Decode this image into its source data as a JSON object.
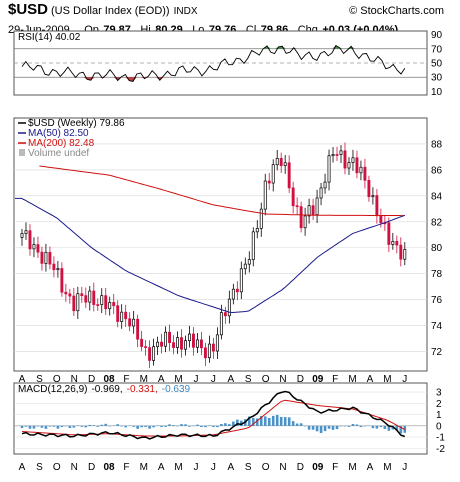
{
  "header": {
    "symbol": "$USD",
    "name": "(US Dollar Index (EOD))",
    "exchange": "INDX",
    "brand": "© StockCharts.com",
    "date": "29-Jun-2009",
    "op_label": "Op",
    "op": "79.87",
    "hi_label": "Hi",
    "hi": "80.29",
    "lo_label": "Lo",
    "lo": "79.76",
    "cl_label": "Cl",
    "cl": "79.86",
    "chg_label": "Chg",
    "chg": "+0.03 (+0.04%)"
  },
  "rsi_panel": {
    "legend": "RSI(14) 40.02",
    "axis": [
      "90",
      "70",
      "50",
      "30",
      "10"
    ]
  },
  "price_panel": {
    "legend": [
      {
        "label": "$USD (Weekly) 79.86",
        "color": "#000000"
      },
      {
        "label": "MA(50) 82.50",
        "color": "#1a1a8c"
      },
      {
        "label": "MA(200) 82.48",
        "color": "#d01010"
      },
      {
        "label": "Volume undef",
        "color": "#888888"
      }
    ],
    "axis": [
      "88",
      "86",
      "84",
      "82",
      "80",
      "78",
      "76",
      "74",
      "72"
    ]
  },
  "macd_panel": {
    "legend_label": "MACD(12,26,9)",
    "legend_values": [
      {
        "text": "-0.969,",
        "color": "#000000"
      },
      {
        "text": "-0.331,",
        "color": "#d01010"
      },
      {
        "text": "-0.639",
        "color": "#3a86c0"
      }
    ],
    "axis": [
      "3",
      "2",
      "1",
      "0",
      "-1",
      "-2"
    ]
  },
  "x_axis": [
    "A",
    "S",
    "O",
    "N",
    "D",
    "08",
    "F",
    "M",
    "A",
    "M",
    "J",
    "J",
    "A",
    "S",
    "O",
    "N",
    "D",
    "09",
    "F",
    "M",
    "A",
    "M",
    "J"
  ],
  "chart_data": {
    "type": "line",
    "title": "$USD (US Dollar Index (EOD)) INDX",
    "frequency": "weekly",
    "x_axis_labels": [
      "A",
      "S",
      "O",
      "N",
      "D",
      "08",
      "F",
      "M",
      "A",
      "M",
      "J",
      "J",
      "A",
      "S",
      "O",
      "N",
      "D",
      "09",
      "F",
      "M",
      "A",
      "M",
      "J"
    ],
    "price": {
      "ylim": [
        70.5,
        90
      ],
      "anchors_close": [
        [
          "2007-08",
          80.8
        ],
        [
          "2007-09",
          79.8
        ],
        [
          "2007-10",
          77.9
        ],
        [
          "2007-11",
          75.6
        ],
        [
          "2007-12",
          76.4
        ],
        [
          "2008-01",
          75.3
        ],
        [
          "2008-02",
          74.8
        ],
        [
          "2008-03",
          72.0
        ],
        [
          "2008-04",
          72.6
        ],
        [
          "2008-05",
          72.9
        ],
        [
          "2008-06",
          72.5
        ],
        [
          "2008-07",
          72.2
        ],
        [
          "2008-08",
          76.5
        ],
        [
          "2008-09",
          78.8
        ],
        [
          "2008-10",
          85.0
        ],
        [
          "2008-11",
          87.0
        ],
        [
          "2008-12",
          81.5
        ],
        [
          "2009-01",
          84.0
        ],
        [
          "2009-02",
          87.5
        ],
        [
          "2009-03",
          86.5
        ],
        [
          "2009-04",
          84.5
        ],
        [
          "2009-05",
          80.5
        ],
        [
          "2009-06",
          79.86
        ]
      ],
      "ma50_anchors": [
        [
          "2007-08",
          83.8
        ],
        [
          "2007-10",
          82.3
        ],
        [
          "2007-12",
          80.0
        ],
        [
          "2008-02",
          78.2
        ],
        [
          "2008-05",
          76.3
        ],
        [
          "2008-08",
          75.0
        ],
        [
          "2008-09",
          75.1
        ],
        [
          "2008-11",
          76.8
        ],
        [
          "2009-01",
          79.3
        ],
        [
          "2009-03",
          81.1
        ],
        [
          "2009-05",
          82.0
        ],
        [
          "2009-06",
          82.5
        ]
      ],
      "ma200_anchors": [
        [
          "2007-09",
          86.3
        ],
        [
          "2008-01",
          85.6
        ],
        [
          "2008-04",
          84.5
        ],
        [
          "2008-07",
          83.3
        ],
        [
          "2008-10",
          82.6
        ],
        [
          "2009-01",
          82.5
        ],
        [
          "2009-06",
          82.48
        ]
      ]
    },
    "rsi": {
      "period": 14,
      "last": 40.02,
      "ylim": [
        5,
        95
      ],
      "levels": [
        70,
        50,
        30
      ],
      "anchors": [
        [
          "2007-08",
          45
        ],
        [
          "2007-11",
          34
        ],
        [
          "2008-01",
          32
        ],
        [
          "2008-03",
          30
        ],
        [
          "2008-05",
          38
        ],
        [
          "2008-07",
          42
        ],
        [
          "2008-09",
          60
        ],
        [
          "2008-11",
          73
        ],
        [
          "2008-12",
          58
        ],
        [
          "2009-01",
          62
        ],
        [
          "2009-03",
          70
        ],
        [
          "2009-04",
          55
        ],
        [
          "2009-06",
          40
        ]
      ]
    },
    "macd": {
      "params": [
        12,
        26,
        9
      ],
      "macd_last": -0.969,
      "signal_last": -0.331,
      "hist_last": -0.639,
      "ylim": [
        -2.5,
        3.8
      ],
      "macd_anchors": [
        [
          "2007-08",
          -0.7
        ],
        [
          "2007-11",
          -0.9
        ],
        [
          "2008-01",
          -0.6
        ],
        [
          "2008-03",
          -1.1
        ],
        [
          "2008-05",
          -0.8
        ],
        [
          "2008-07",
          -0.9
        ],
        [
          "2008-09",
          0.5
        ],
        [
          "2008-11",
          3.2
        ],
        [
          "2009-01",
          1.2
        ],
        [
          "2009-03",
          1.6
        ],
        [
          "2009-05",
          0.2
        ],
        [
          "2009-06",
          -0.97
        ]
      ],
      "signal_anchors": [
        [
          "2007-08",
          -0.5
        ],
        [
          "2007-11",
          -0.8
        ],
        [
          "2008-01",
          -0.7
        ],
        [
          "2008-03",
          -0.9
        ],
        [
          "2008-05",
          -0.9
        ],
        [
          "2008-07",
          -0.8
        ],
        [
          "2008-09",
          -0.2
        ],
        [
          "2008-11",
          2.3
        ],
        [
          "2009-01",
          1.8
        ],
        [
          "2009-03",
          1.5
        ],
        [
          "2009-05",
          0.5
        ],
        [
          "2009-06",
          -0.33
        ]
      ]
    }
  }
}
